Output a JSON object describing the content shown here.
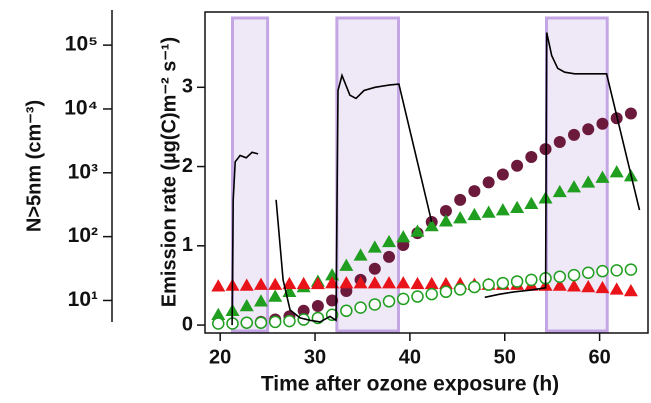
{
  "chart_data": {
    "type": "line",
    "x_label": "Time after ozone exposure (h)",
    "y_label": "Emission rate (µg(C)m⁻² s⁻¹)",
    "y2_label": "N>5nm (cm⁻³)",
    "xlim": [
      18.4,
      65.1
    ],
    "xticks": [
      20,
      30,
      40,
      50,
      60
    ],
    "ylim": [
      -0.1,
      3.95
    ],
    "yticks": [
      0,
      1,
      2,
      3
    ],
    "y2lim": [
      4.6,
      355000
    ],
    "y2_log": true,
    "y2ticks": [
      {
        "value": 10,
        "label": "10¹"
      },
      {
        "value": 100,
        "label": "10²"
      },
      {
        "value": 1000,
        "label": "10³"
      },
      {
        "value": 10000,
        "label": "10⁴"
      },
      {
        "value": 100000,
        "label": "10⁵"
      }
    ],
    "shaded_regions": [
      [
        21.3,
        25.0
      ],
      [
        32.3,
        38.8
      ],
      [
        54.4,
        60.8
      ]
    ],
    "shade_color": "#efe8f7",
    "shade_edge": "#c3a6e3",
    "x": [
      19.8,
      21.3,
      22.8,
      24.3,
      25.8,
      27.3,
      28.8,
      30.3,
      31.8,
      33.3,
      34.8,
      36.3,
      37.8,
      39.3,
      40.8,
      42.3,
      43.8,
      45.3,
      46.8,
      48.3,
      49.8,
      51.3,
      52.8,
      54.3,
      55.8,
      57.3,
      58.8,
      60.3,
      61.8,
      63.3
    ],
    "series": [
      {
        "type": "scatter",
        "marker": "circle",
        "color": "#6b1a3c",
        "values": [
          0.02,
          0.02,
          0.03,
          0.04,
          0.07,
          0.11,
          0.18,
          0.24,
          0.31,
          0.43,
          0.57,
          0.71,
          0.86,
          1.01,
          1.16,
          1.3,
          1.44,
          1.58,
          1.69,
          1.8,
          1.9,
          2.01,
          2.12,
          2.22,
          2.31,
          2.4,
          2.47,
          2.54,
          2.61,
          2.67
        ]
      },
      {
        "type": "scatter",
        "marker": "triangle",
        "color": "#1f9e1f",
        "values": [
          0.13,
          0.18,
          0.24,
          0.3,
          0.36,
          0.42,
          0.48,
          0.55,
          0.63,
          0.75,
          0.88,
          0.98,
          1.05,
          1.11,
          1.18,
          1.25,
          1.31,
          1.35,
          1.39,
          1.42,
          1.45,
          1.48,
          1.53,
          1.6,
          1.68,
          1.74,
          1.8,
          1.86,
          1.93,
          1.88
        ]
      },
      {
        "type": "scatter",
        "marker": "triangle",
        "color": "#e8141a",
        "values": [
          0.49,
          0.5,
          0.5,
          0.51,
          0.51,
          0.52,
          0.52,
          0.52,
          0.53,
          0.53,
          0.53,
          0.53,
          0.53,
          0.53,
          0.52,
          0.52,
          0.52,
          0.52,
          0.51,
          0.51,
          0.51,
          0.51,
          0.5,
          0.5,
          0.5,
          0.49,
          0.48,
          0.47,
          0.45,
          0.43
        ]
      },
      {
        "type": "scatter",
        "marker": "circle-open",
        "color": "#1f9e1f",
        "values": [
          0.02,
          0.02,
          0.03,
          0.03,
          0.04,
          0.05,
          0.07,
          0.09,
          0.13,
          0.18,
          0.22,
          0.26,
          0.3,
          0.33,
          0.36,
          0.39,
          0.42,
          0.45,
          0.48,
          0.51,
          0.53,
          0.55,
          0.57,
          0.59,
          0.61,
          0.63,
          0.66,
          0.68,
          0.69,
          0.7
        ]
      },
      {
        "type": "line",
        "color": "#000000",
        "x": [
          21.26,
          21.37,
          21.58,
          22.1,
          22.74,
          23.37,
          24.0,
          null,
          25.9,
          26.63,
          27.37,
          28.42,
          29.47,
          30.53,
          31.58,
          32.21,
          32.42,
          32.84,
          33.68,
          34.32,
          35.16,
          36.32,
          37.9,
          38.84,
          42.3,
          null,
          47.9,
          49.47,
          51.05,
          52.63,
          54.3,
          54.42,
          54.95,
          55.58,
          56.32,
          57.37,
          58.95,
          60.74,
          64.2
        ],
        "values": [
          0.0,
          1.58,
          2.06,
          2.14,
          2.11,
          2.18,
          2.16,
          null,
          1.58,
          0.57,
          0.19,
          0.09,
          0.06,
          0.04,
          0.11,
          0.06,
          2.96,
          3.15,
          2.9,
          2.86,
          2.96,
          3.0,
          3.03,
          3.04,
          1.3,
          null,
          0.35,
          0.39,
          0.42,
          0.44,
          0.47,
          3.69,
          3.4,
          3.24,
          3.19,
          3.17,
          3.17,
          3.17,
          1.45
        ]
      }
    ]
  }
}
